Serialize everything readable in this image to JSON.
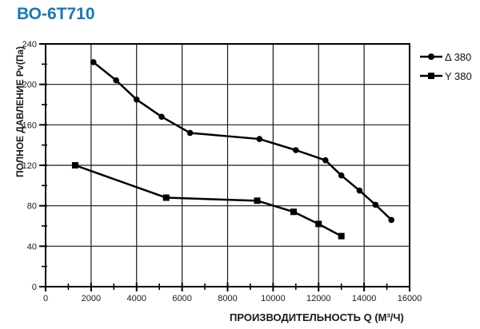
{
  "title": {
    "text": "ВО-6Т710",
    "color": "#1877BE"
  },
  "chart_data": {
    "type": "line",
    "title": "ВО-6Т710",
    "xlabel": "ПРОИЗВОДИТЕЛЬНОСТЬ  Q  (М³/Ч)",
    "ylabel": "ПОЛНОЕ ДАВЛЕНИЕ  Pv(Па)",
    "xlim": [
      0,
      16000
    ],
    "ylim": [
      0,
      240
    ],
    "x_major_ticks": [
      0,
      2000,
      4000,
      6000,
      8000,
      10000,
      12000,
      14000,
      16000
    ],
    "x_minor_step": 1000,
    "y_major_ticks": [
      0,
      40,
      80,
      120,
      160,
      200,
      240
    ],
    "y_minor_step": 20,
    "grid": true,
    "legend_position": "right-outside",
    "axis_color": "#000000",
    "grid_color": "#1a1a1a",
    "series": [
      {
        "name": "Δ 380",
        "marker": "circle",
        "color": "#000000",
        "points": [
          [
            2100,
            222
          ],
          [
            3100,
            204
          ],
          [
            4000,
            185
          ],
          [
            5100,
            168
          ],
          [
            6350,
            152
          ],
          [
            9400,
            146
          ],
          [
            11000,
            135
          ],
          [
            12300,
            125
          ],
          [
            13000,
            110
          ],
          [
            13800,
            95
          ],
          [
            14500,
            81
          ],
          [
            15200,
            66
          ]
        ]
      },
      {
        "name": "Y 380",
        "marker": "square",
        "color": "#000000",
        "points": [
          [
            1300,
            120
          ],
          [
            5300,
            88
          ],
          [
            9300,
            85
          ],
          [
            10900,
            74
          ],
          [
            12000,
            62
          ],
          [
            13000,
            50
          ]
        ]
      }
    ]
  }
}
